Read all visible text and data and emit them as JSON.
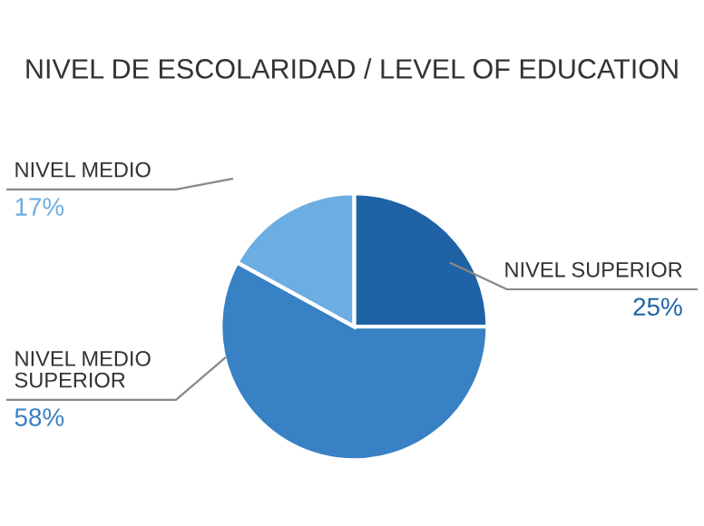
{
  "chart_data": {
    "type": "pie",
    "title": "NIVEL DE ESCOLARIDAD / LEVEL OF EDUCATION",
    "categories": [
      "NIVEL SUPERIOR",
      "NIVEL MEDIO SUPERIOR",
      "NIVEL MEDIO"
    ],
    "values": [
      25,
      58,
      17
    ],
    "colors": [
      "#1f63a6",
      "#3781c4",
      "#6cade2"
    ],
    "value_labels": [
      "25%",
      "58%",
      "17%"
    ]
  }
}
